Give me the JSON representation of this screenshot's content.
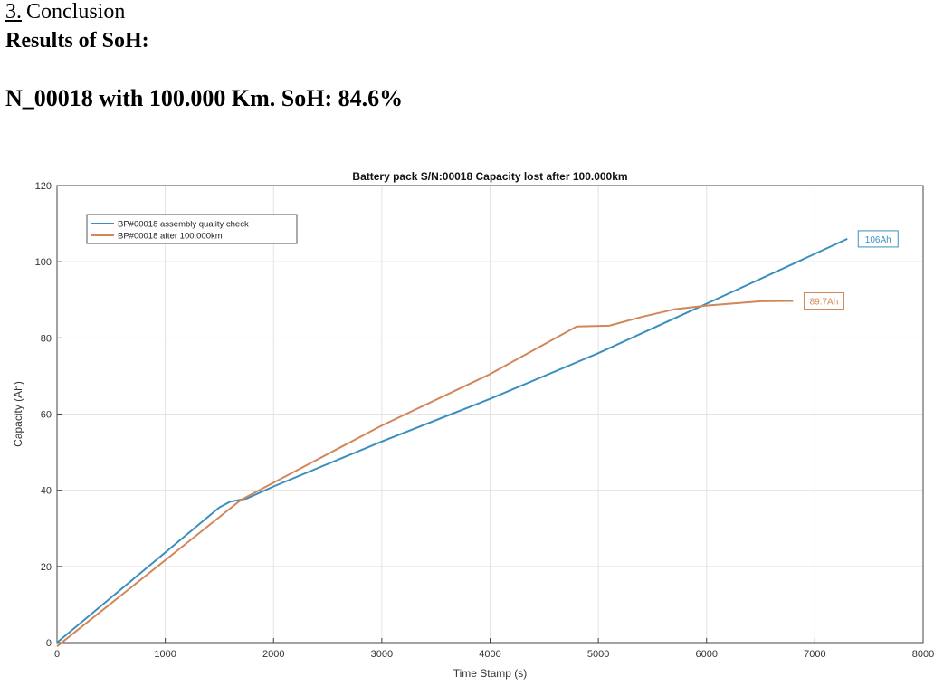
{
  "doc": {
    "section_number": "3.",
    "section_title": "Conclusion",
    "results_heading": "Results of SoH:",
    "soh_line": "N_00018 with 100.000 Km. SoH: 84.6%"
  },
  "chart_data": {
    "type": "line",
    "title": "Battery pack S/N:00018 Capacity lost after 100.000km",
    "xlabel": "Time Stamp (s)",
    "ylabel": "Capacity (Ah)",
    "xlim": [
      0,
      8000
    ],
    "ylim": [
      0,
      120
    ],
    "xticks": [
      0,
      1000,
      2000,
      3000,
      4000,
      5000,
      6000,
      7000,
      8000
    ],
    "yticks": [
      0,
      20,
      40,
      60,
      80,
      100,
      120
    ],
    "grid": true,
    "legend_position": "top-left",
    "series": [
      {
        "name": "BP#00018 assembly quality check",
        "color": "#3b8fbf",
        "points": [
          [
            0,
            0
          ],
          [
            1500,
            35.5
          ],
          [
            1600,
            37
          ],
          [
            1750,
            37.8
          ],
          [
            2000,
            41
          ],
          [
            3000,
            52.8
          ],
          [
            4000,
            64
          ],
          [
            5000,
            76
          ],
          [
            6000,
            89
          ],
          [
            7300,
            106
          ]
        ],
        "end_label": "106Ah"
      },
      {
        "name": "BP#00018 after 100.000km",
        "color": "#d2875a",
        "points": [
          [
            0,
            -1
          ],
          [
            1700,
            37.5
          ],
          [
            2000,
            42
          ],
          [
            3000,
            57
          ],
          [
            4000,
            70.5
          ],
          [
            4800,
            83
          ],
          [
            5100,
            83.2
          ],
          [
            5400,
            85.5
          ],
          [
            5700,
            87.5
          ],
          [
            6000,
            88.5
          ],
          [
            6500,
            89.6
          ],
          [
            6800,
            89.7
          ]
        ],
        "end_label": "89.7Ah"
      }
    ]
  }
}
